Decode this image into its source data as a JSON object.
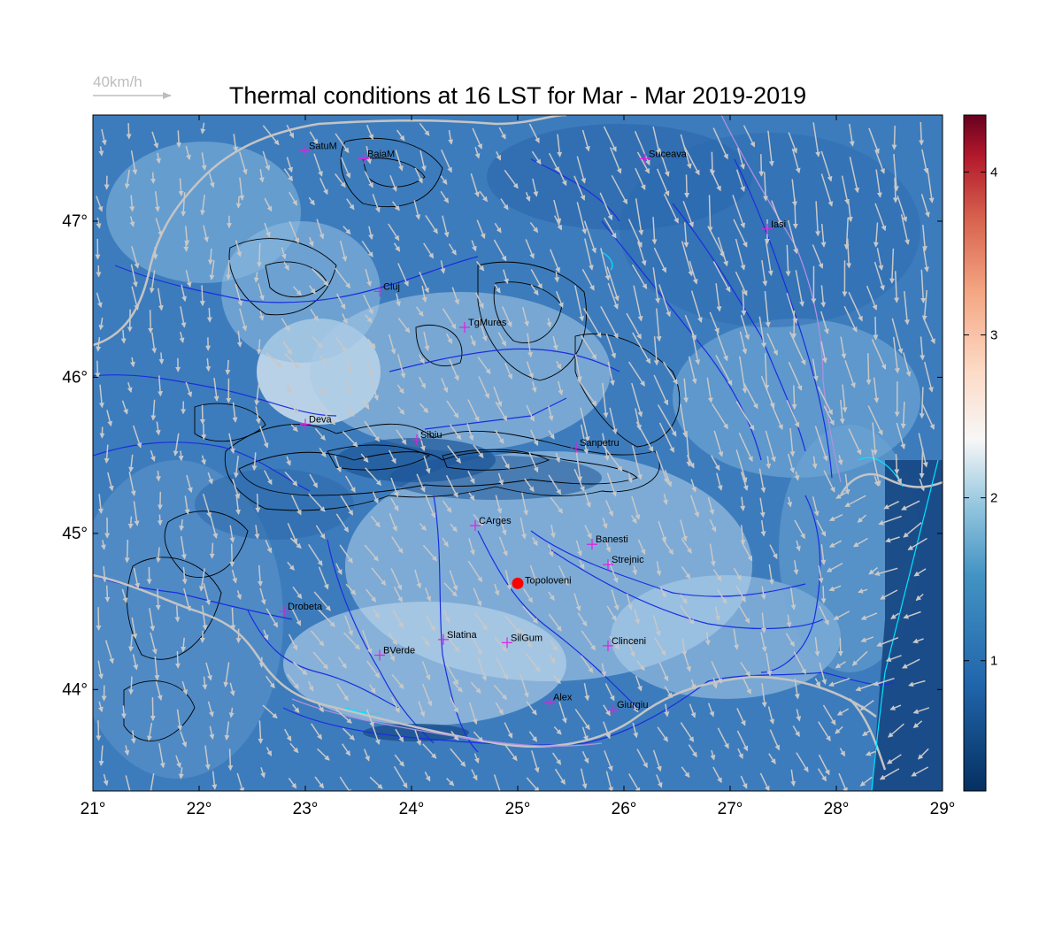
{
  "title": "Thermal conditions at 16 LST for Mar - Mar  2019-2019",
  "wind_legend": {
    "label": "40km/h",
    "color": "#bdbdbd"
  },
  "colors": {
    "field_dark": "#1f5a9a",
    "field_mid": "#4f8bc4",
    "field_light": "#cfe1ef",
    "rivers": "#1a2ee0",
    "borders": "#c4c4c4",
    "coast": "#00e5ff",
    "contours": "#000000",
    "city_marker": "#e020e0",
    "highlight": "#ff0000",
    "wind_arrows": "#c8c8c8"
  },
  "axes": {
    "lon_ticks": [
      "21°",
      "22°",
      "23°",
      "24°",
      "25°",
      "26°",
      "27°",
      "28°",
      "29°"
    ],
    "lat_ticks": [
      "47°",
      "46°",
      "45°",
      "44°"
    ],
    "lon_range": [
      21,
      29
    ],
    "lat_range": [
      43.35,
      47.68
    ]
  },
  "colorbar": {
    "ticks": [
      "1",
      "2",
      "3",
      "4"
    ],
    "range": [
      0.2,
      4.35
    ],
    "colormap": "RdBu reversed (blue low, red high)"
  },
  "cities": [
    {
      "name": "SatuM",
      "lon": 23.0,
      "lat": 47.45
    },
    {
      "name": "BaiaM",
      "lon": 23.55,
      "lat": 47.4
    },
    {
      "name": "Suceava",
      "lon": 26.2,
      "lat": 47.4
    },
    {
      "name": "Iasi",
      "lon": 27.35,
      "lat": 46.95
    },
    {
      "name": "Cluj",
      "lon": 23.7,
      "lat": 46.55
    },
    {
      "name": "TgMures",
      "lon": 24.5,
      "lat": 46.32
    },
    {
      "name": "Deva",
      "lon": 23.0,
      "lat": 45.7
    },
    {
      "name": "Sibiu",
      "lon": 24.05,
      "lat": 45.6
    },
    {
      "name": "Sanpetru",
      "lon": 25.55,
      "lat": 45.55
    },
    {
      "name": "CArges",
      "lon": 24.6,
      "lat": 45.05
    },
    {
      "name": "Banesti",
      "lon": 25.7,
      "lat": 44.93
    },
    {
      "name": "Strejnic",
      "lon": 25.85,
      "lat": 44.8
    },
    {
      "name": "Drobeta",
      "lon": 22.8,
      "lat": 44.5
    },
    {
      "name": "Slatina",
      "lon": 24.3,
      "lat": 44.32
    },
    {
      "name": "SilGum",
      "lon": 24.9,
      "lat": 44.3
    },
    {
      "name": "BVerde",
      "lon": 23.7,
      "lat": 44.22
    },
    {
      "name": "Clinceni",
      "lon": 25.85,
      "lat": 44.28
    },
    {
      "name": "Alex",
      "lon": 25.3,
      "lat": 43.92
    },
    {
      "name": "Giurgiu",
      "lon": 25.9,
      "lat": 43.87
    }
  ],
  "highlight_site": {
    "name": "Topoloveni",
    "lon": 25.0,
    "lat": 44.68
  }
}
